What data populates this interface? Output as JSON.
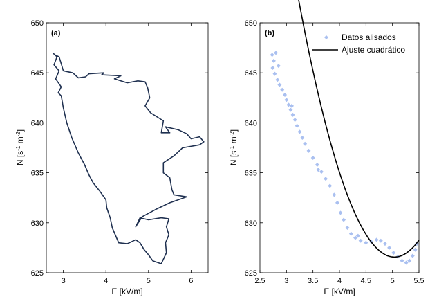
{
  "chart_data": [
    {
      "type": "line",
      "panel_label": "(a)",
      "xlabel": "E [kV/m]",
      "ylabel": "N  [s-1 m-2]",
      "ylabel_base": "N  [s",
      "ylabel_exp1": "-1",
      "ylabel_mid": " m",
      "ylabel_exp2": "-2",
      "ylabel_close": "]",
      "xlim": [
        2.6,
        6.4
      ],
      "ylim": [
        625,
        650
      ],
      "xticks": [
        3,
        4,
        5,
        6
      ],
      "yticks": [
        625,
        630,
        635,
        640,
        645,
        650
      ],
      "grid": false,
      "series": [
        {
          "color": "#1f3050",
          "points": [
            [
              2.75,
              647.0
            ],
            [
              2.85,
              646.6
            ],
            [
              2.78,
              645.8
            ],
            [
              2.9,
              645.2
            ],
            [
              2.82,
              644.4
            ],
            [
              2.95,
              643.6
            ],
            [
              2.88,
              643.0
            ],
            [
              2.95,
              642.7
            ],
            [
              3.0,
              641.5
            ],
            [
              3.08,
              640.0
            ],
            [
              3.2,
              638.5
            ],
            [
              3.35,
              637.0
            ],
            [
              3.5,
              635.8
            ],
            [
              3.6,
              634.8
            ],
            [
              3.7,
              634.0
            ],
            [
              3.85,
              633.2
            ],
            [
              4.0,
              632.3
            ],
            [
              4.02,
              631.5
            ],
            [
              4.1,
              630.5
            ],
            [
              4.15,
              629.5
            ],
            [
              4.25,
              628.5
            ],
            [
              4.3,
              628.0
            ],
            [
              4.5,
              627.9
            ],
            [
              4.7,
              628.3
            ],
            [
              4.8,
              628.0
            ],
            [
              4.9,
              627.3
            ],
            [
              5.0,
              626.8
            ],
            [
              5.1,
              626.2
            ],
            [
              5.3,
              625.9
            ],
            [
              5.42,
              627.0
            ],
            [
              5.4,
              628.0
            ],
            [
              5.48,
              628.8
            ],
            [
              5.42,
              629.6
            ],
            [
              5.48,
              630.4
            ],
            [
              5.3,
              630.5
            ],
            [
              5.0,
              630.3
            ],
            [
              4.8,
              630.5
            ],
            [
              4.7,
              629.6
            ],
            [
              4.85,
              630.6
            ],
            [
              5.2,
              631.4
            ],
            [
              5.5,
              632.0
            ],
            [
              5.9,
              632.6
            ],
            [
              5.6,
              632.8
            ],
            [
              5.55,
              633.3
            ],
            [
              5.5,
              634.5
            ],
            [
              5.35,
              635.0
            ],
            [
              5.35,
              636.0
            ],
            [
              5.6,
              636.7
            ],
            [
              5.8,
              637.5
            ],
            [
              6.2,
              637.8
            ],
            [
              6.3,
              638.1
            ],
            [
              6.2,
              638.6
            ],
            [
              6.0,
              638.4
            ],
            [
              5.9,
              638.9
            ],
            [
              5.7,
              639.3
            ],
            [
              5.4,
              639.6
            ],
            [
              5.5,
              639.0
            ],
            [
              5.3,
              639.0
            ],
            [
              5.35,
              640.2
            ],
            [
              5.05,
              641.0
            ],
            [
              4.92,
              641.7
            ],
            [
              5.03,
              642.5
            ],
            [
              4.98,
              643.5
            ],
            [
              4.92,
              644.1
            ],
            [
              4.75,
              644.2
            ],
            [
              4.5,
              644.0
            ],
            [
              4.2,
              644.4
            ],
            [
              4.35,
              644.7
            ],
            [
              3.9,
              644.8
            ],
            [
              3.95,
              645.0
            ],
            [
              3.6,
              644.9
            ],
            [
              3.52,
              644.6
            ],
            [
              3.35,
              644.5
            ],
            [
              3.22,
              645.0
            ],
            [
              3.0,
              645.2
            ],
            [
              2.95,
              645.9
            ],
            [
              2.9,
              646.6
            ],
            [
              2.8,
              646.8
            ],
            [
              2.75,
              647.0
            ]
          ]
        }
      ]
    },
    {
      "type": "scatter",
      "panel_label": "(b)",
      "xlabel": "E [kV/m]",
      "ylabel": "N  [s-1 m-2]",
      "ylabel_base": "N  [s",
      "ylabel_exp1": "-1",
      "ylabel_mid": " m",
      "ylabel_exp2": "-2",
      "ylabel_close": "]",
      "xlim": [
        2.5,
        5.5
      ],
      "ylim": [
        625,
        650
      ],
      "xticks": [
        2.5,
        3,
        3.5,
        4,
        4.5,
        5,
        5.5
      ],
      "xticklabels": [
        "2.5",
        "3",
        "3.5",
        "4",
        "4.5",
        "5",
        "5.5"
      ],
      "yticks": [
        625,
        630,
        635,
        640,
        645,
        650
      ],
      "grid": false,
      "legend_position": "top-right",
      "series": [
        {
          "name": "Datos alisados",
          "style": "markers",
          "color": "#aac0f0",
          "points": [
            [
              2.73,
              646.8
            ],
            [
              2.76,
              646.2
            ],
            [
              2.74,
              645.5
            ],
            [
              2.78,
              644.9
            ],
            [
              2.83,
              644.3
            ],
            [
              2.87,
              643.8
            ],
            [
              2.92,
              643.3
            ],
            [
              2.97,
              642.8
            ],
            [
              3.0,
              642.3
            ],
            [
              3.04,
              641.8
            ],
            [
              3.08,
              641.3
            ],
            [
              3.12,
              640.8
            ],
            [
              3.16,
              640.3
            ],
            [
              3.2,
              639.7
            ],
            [
              3.25,
              639.1
            ],
            [
              3.3,
              638.5
            ],
            [
              3.35,
              637.9
            ],
            [
              3.42,
              637.2
            ],
            [
              3.5,
              636.5
            ],
            [
              3.58,
              635.8
            ],
            [
              3.66,
              635.1
            ],
            [
              3.74,
              634.4
            ],
            [
              3.82,
              633.7
            ],
            [
              3.9,
              632.8
            ],
            [
              3.96,
              632.0
            ],
            [
              4.02,
              631.0
            ],
            [
              4.08,
              630.3
            ],
            [
              4.15,
              629.5
            ],
            [
              4.22,
              628.9
            ],
            [
              4.3,
              628.5
            ],
            [
              4.4,
              628.2
            ],
            [
              4.5,
              628.0
            ],
            [
              4.6,
              628.1
            ],
            [
              4.7,
              628.3
            ],
            [
              4.78,
              628.2
            ],
            [
              4.86,
              627.9
            ],
            [
              4.94,
              627.5
            ],
            [
              5.02,
              627.0
            ],
            [
              5.1,
              626.6
            ],
            [
              5.18,
              626.2
            ],
            [
              5.26,
              626.0
            ],
            [
              5.32,
              626.2
            ],
            [
              5.38,
              626.7
            ],
            [
              5.43,
              627.3
            ],
            [
              5.46,
              627.9
            ],
            [
              2.8,
              647.0
            ],
            [
              2.85,
              645.7
            ],
            [
              3.1,
              641.7
            ],
            [
              3.6,
              635.3
            ],
            [
              4.35,
              628.7
            ]
          ]
        },
        {
          "name": "Ajuste cuadrático",
          "style": "line",
          "color": "#000000",
          "coefficients": {
            "b0": 626.6,
            "b1": 1.0,
            "b2": 7.89,
            "vertex_x": 5.1
          },
          "x_range": [
            2.72,
            5.5
          ]
        }
      ]
    }
  ]
}
